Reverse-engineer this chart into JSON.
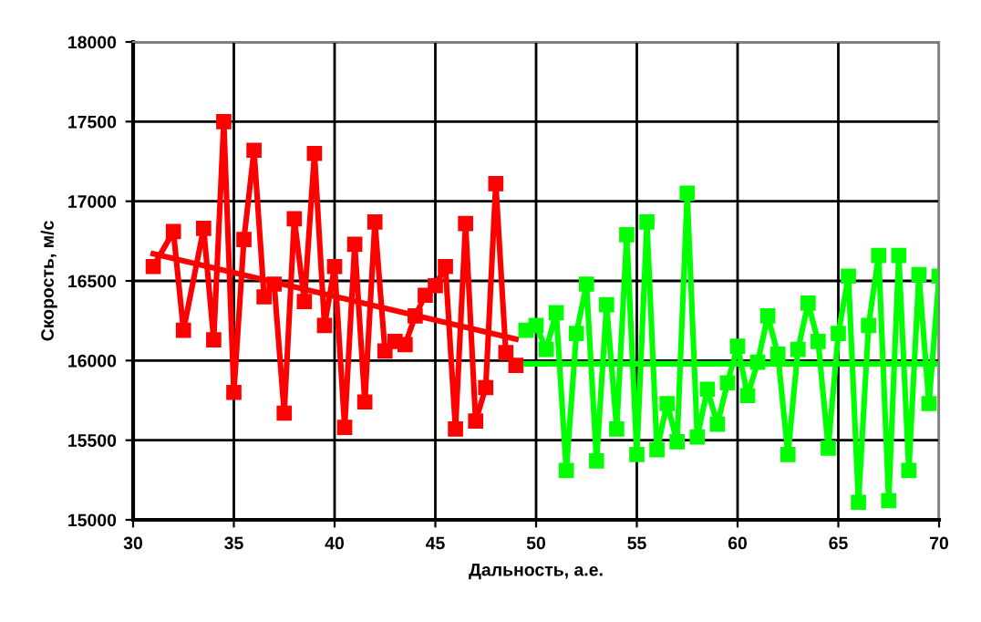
{
  "chart_data": {
    "type": "line",
    "xlabel": "Дальность, а.е.",
    "ylabel": "Скорость, м/с",
    "xlim": [
      30,
      70
    ],
    "xticks": [
      30,
      35,
      40,
      45,
      50,
      55,
      60,
      65,
      70
    ],
    "ylim": [
      15000,
      18000
    ],
    "yticks": [
      15000,
      15500,
      16000,
      16500,
      17000,
      17500,
      18000
    ],
    "grid": true,
    "legend": false,
    "marker": "square",
    "line_style": "solid",
    "series": [
      {
        "color": "#ff0000",
        "x": [
          31,
          32,
          32.5,
          33.5,
          34,
          34.5,
          35,
          35.5,
          36,
          36.5,
          37,
          37.5,
          38,
          38.5,
          39,
          39.5,
          40,
          40.5,
          41,
          41.5,
          42,
          42.5,
          43,
          43.5,
          44,
          44.5,
          45,
          45.5,
          46,
          46.5,
          47,
          47.5,
          48,
          48.5,
          49
        ],
        "values": [
          16590,
          16810,
          16190,
          16830,
          16130,
          17500,
          15800,
          16760,
          17320,
          16400,
          16480,
          15670,
          16890,
          16370,
          17300,
          16220,
          16590,
          15580,
          16730,
          15740,
          16870,
          16060,
          16120,
          16100,
          16280,
          16410,
          16470,
          16590,
          15570,
          16860,
          15620,
          15830,
          17110,
          16050,
          15970
        ]
      },
      {
        "type": "line",
        "color": "#ff0000",
        "marker": "none",
        "x": [
          31,
          49
        ],
        "values": [
          16670,
          16135
        ]
      },
      {
        "color": "#00ff00",
        "x": [
          49.5,
          50,
          50.5,
          51,
          51.5,
          52,
          52.5,
          53,
          53.5,
          54,
          54.5,
          55,
          55.5,
          56,
          56.5,
          57,
          57.5,
          58,
          58.5,
          59,
          59.5,
          60,
          60.5,
          61,
          61.5,
          62,
          62.5,
          63,
          63.5,
          64,
          64.5,
          65,
          65.5,
          66,
          66.5,
          67,
          67.5,
          68,
          68.5,
          69,
          69.5,
          70
        ],
        "values": [
          16190,
          16220,
          16070,
          16300,
          15310,
          16170,
          16480,
          15370,
          16350,
          15570,
          16790,
          15410,
          16870,
          15440,
          15730,
          15490,
          17050,
          15520,
          15820,
          15600,
          15860,
          16090,
          15780,
          15990,
          16280,
          16040,
          15410,
          16070,
          16360,
          16120,
          15450,
          16170,
          16530,
          15110,
          16220,
          16660,
          15120,
          16660,
          15310,
          16540,
          15730,
          16530
        ]
      },
      {
        "type": "line",
        "color": "#00ff00",
        "marker": "none",
        "x": [
          49.5,
          70
        ],
        "values": [
          15980,
          15980
        ]
      }
    ]
  }
}
